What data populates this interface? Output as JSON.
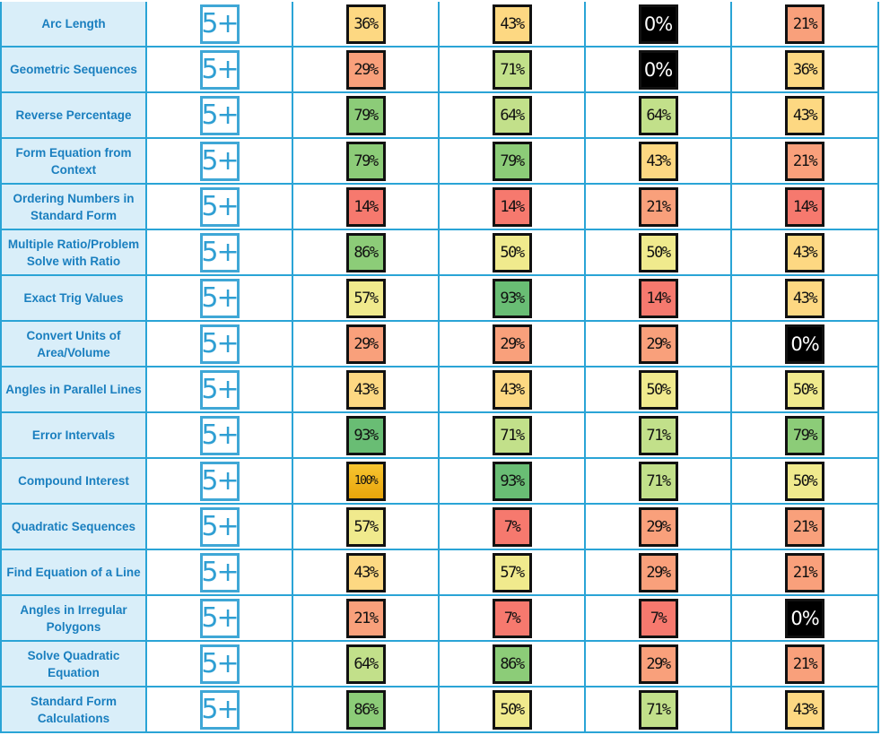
{
  "colors": {
    "border": "#2aa4d6",
    "topic_bg": "#d9eef9",
    "topic_text": "#1a7fbf",
    "grade_badge": "#3fa7d6",
    "band_0": "#000000",
    "band_1_14": "#f6796e",
    "band_21_29": "#f9a07b",
    "band_36_43": "#fdd882",
    "band_50_57": "#f0ea8d",
    "band_64_71": "#c2e08a",
    "band_79_86": "#8ccc78",
    "band_93": "#69bd74",
    "band_100": "#e8a50b"
  },
  "rows": [
    {
      "topic": "Arc Length",
      "grade": "5+",
      "scores": [
        "36%",
        "43%",
        "0%",
        "21%"
      ]
    },
    {
      "topic": "Geometric Sequences",
      "grade": "5+",
      "scores": [
        "29%",
        "71%",
        "0%",
        "36%"
      ]
    },
    {
      "topic": "Reverse Percentage",
      "grade": "5+",
      "scores": [
        "79%",
        "64%",
        "64%",
        "43%"
      ]
    },
    {
      "topic": "Form Equation from Context",
      "grade": "5+",
      "scores": [
        "79%",
        "79%",
        "43%",
        "21%"
      ]
    },
    {
      "topic": "Ordering Numbers in Standard Form",
      "grade": "5+",
      "scores": [
        "14%",
        "14%",
        "21%",
        "14%"
      ]
    },
    {
      "topic": "Multiple Ratio/Problem Solve with Ratio",
      "grade": "5+",
      "scores": [
        "86%",
        "50%",
        "50%",
        "43%"
      ]
    },
    {
      "topic": "Exact Trig Values",
      "grade": "5+",
      "scores": [
        "57%",
        "93%",
        "14%",
        "43%"
      ]
    },
    {
      "topic": "Convert Units of Area/Volume",
      "grade": "5+",
      "scores": [
        "29%",
        "29%",
        "29%",
        "0%"
      ]
    },
    {
      "topic": "Angles in Parallel Lines",
      "grade": "5+",
      "scores": [
        "43%",
        "43%",
        "50%",
        "50%"
      ]
    },
    {
      "topic": "Error Intervals",
      "grade": "5+",
      "scores": [
        "93%",
        "71%",
        "71%",
        "79%"
      ]
    },
    {
      "topic": "Compound Interest",
      "grade": "5+",
      "scores": [
        "100%",
        "93%",
        "71%",
        "50%"
      ]
    },
    {
      "topic": "Quadratic Sequences",
      "grade": "5+",
      "scores": [
        "57%",
        "7%",
        "29%",
        "21%"
      ]
    },
    {
      "topic": "Find Equation of a Line",
      "grade": "5+",
      "scores": [
        "43%",
        "57%",
        "29%",
        "21%"
      ]
    },
    {
      "topic": "Angles in Irregular Polygons",
      "grade": "5+",
      "scores": [
        "21%",
        "7%",
        "7%",
        "0%"
      ]
    },
    {
      "topic": "Solve Quadratic Equation",
      "grade": "5+",
      "scores": [
        "64%",
        "86%",
        "29%",
        "21%"
      ]
    },
    {
      "topic": "Standard Form Calculations",
      "grade": "5+",
      "scores": [
        "86%",
        "50%",
        "71%",
        "43%"
      ]
    }
  ]
}
